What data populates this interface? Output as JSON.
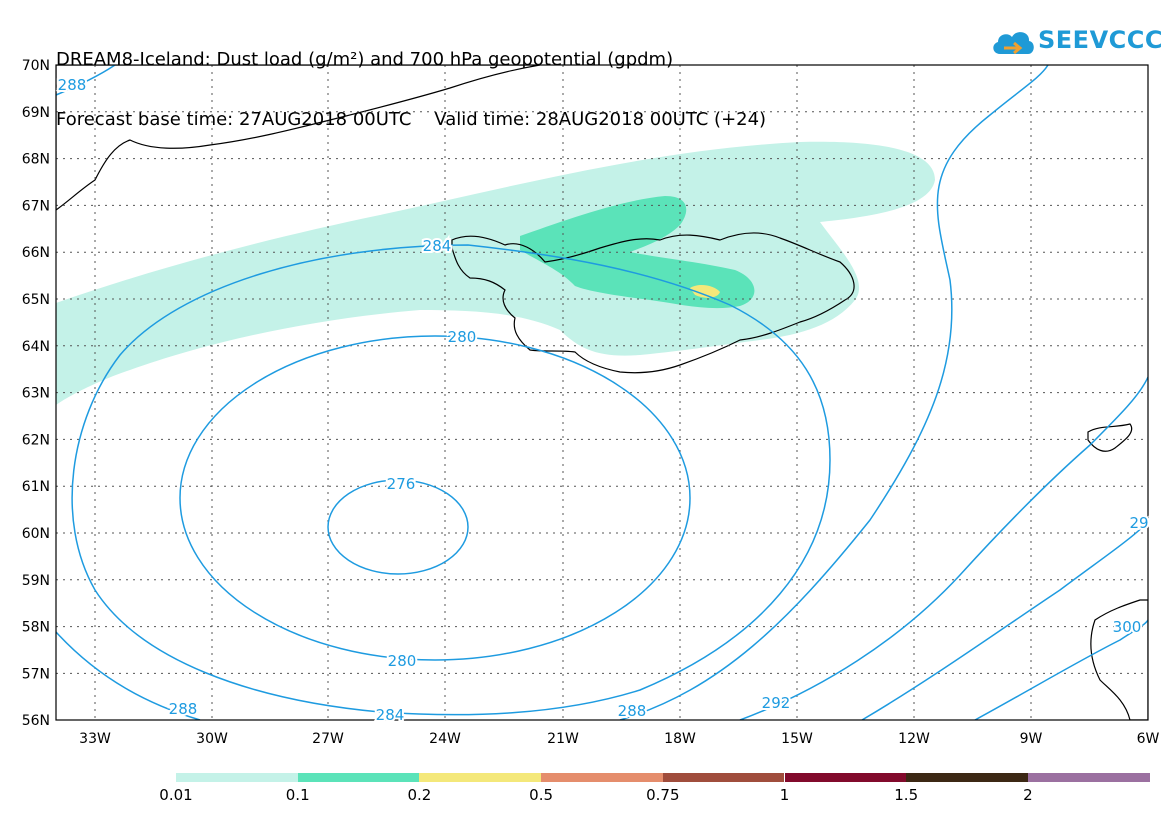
{
  "header": {
    "title_line1": "DREAM8-Iceland: Dust load (g/m²) and 700 hPa geopotential (gpdm)",
    "title_line2": "Forecast base time: 27AUG2018 00UTC    Valid time: 28AUG2018 00UTC (+24)"
  },
  "logo": {
    "text": "SEEVCCC",
    "icon": "cloud-icon",
    "color": "#1f9ad6"
  },
  "map": {
    "lat_labels": [
      "70N",
      "69N",
      "68N",
      "67N",
      "66N",
      "65N",
      "64N",
      "63N",
      "62N",
      "61N",
      "60N",
      "59N",
      "58N",
      "57N",
      "56N"
    ],
    "lon_labels": [
      "33W",
      "30W",
      "27W",
      "24W",
      "21W",
      "18W",
      "15W",
      "12W",
      "9W",
      "6W"
    ],
    "contour_labels": [
      {
        "text": "288",
        "id": "c288-nw"
      },
      {
        "text": "284",
        "id": "c284-top"
      },
      {
        "text": "280",
        "id": "c280-top"
      },
      {
        "text": "276",
        "id": "c276"
      },
      {
        "text": "280",
        "id": "c280-bottom"
      },
      {
        "text": "284",
        "id": "c284-bottom"
      },
      {
        "text": "288",
        "id": "c288-sw"
      },
      {
        "text": "288",
        "id": "c288-s"
      },
      {
        "text": "292",
        "id": "c292"
      },
      {
        "text": "29",
        "id": "c29-e"
      },
      {
        "text": "300",
        "id": "c300-e"
      }
    ],
    "contour_color": "#1e9be0",
    "dust_colors": {
      "d001": "#c4f2e8",
      "d01": "#5be3b9",
      "d02": "#f4e87a"
    }
  },
  "colorbar": {
    "segments": [
      {
        "color": "#c4f2e8"
      },
      {
        "color": "#5be3b9"
      },
      {
        "color": "#f4e87a"
      },
      {
        "color": "#e58d6c"
      },
      {
        "color": "#a04d3c"
      },
      {
        "color": "#820a2c"
      },
      {
        "color": "#3c2814"
      },
      {
        "color": "#9b70a0"
      }
    ],
    "labels": [
      "0.01",
      "0.1",
      "0.2",
      "0.5",
      "0.75",
      "1",
      "1.5",
      "2"
    ]
  }
}
